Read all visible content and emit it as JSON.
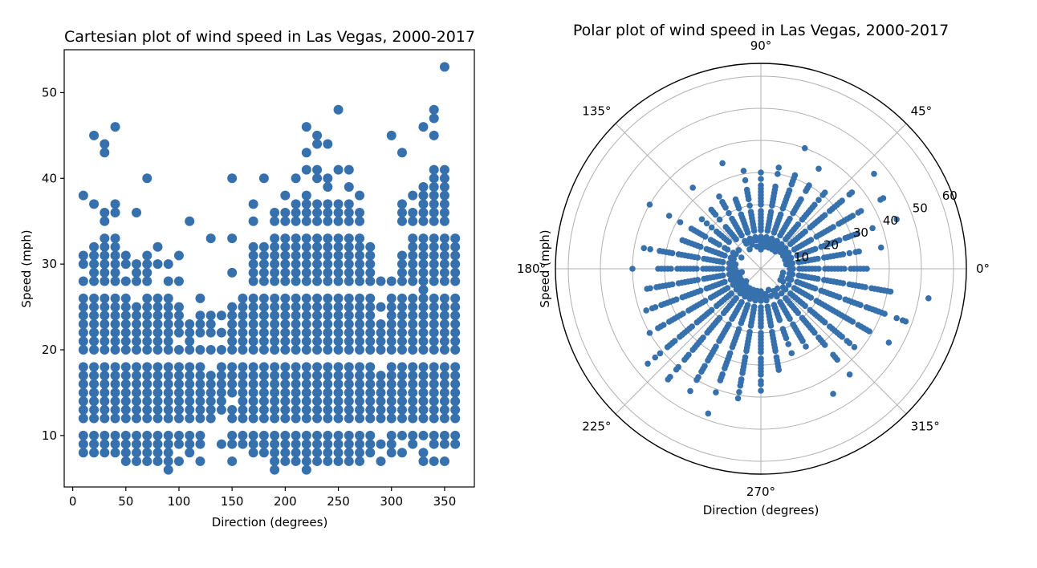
{
  "colors": {
    "point": "#3670ad",
    "grid": "#b0b0b0",
    "axis": "#000000",
    "background": "#ffffff"
  },
  "chart_data": [
    {
      "type": "scatter",
      "title": "Cartesian plot of wind speed in Las Vegas, 2000-2017",
      "xlabel": "Direction (degrees)",
      "ylabel": "Speed (mph)",
      "xlim": [
        -8,
        378
      ],
      "ylim": [
        4,
        55
      ],
      "xticks": [
        0,
        50,
        100,
        150,
        200,
        250,
        300,
        350
      ],
      "yticks": [
        10,
        20,
        30,
        40,
        50
      ],
      "grid": false,
      "directions": [
        10,
        20,
        30,
        40,
        50,
        60,
        70,
        80,
        90,
        100,
        110,
        120,
        130,
        140,
        150,
        160,
        170,
        180,
        190,
        200,
        210,
        220,
        230,
        240,
        250,
        260,
        270,
        280,
        290,
        300,
        310,
        320,
        330,
        340,
        350,
        360
      ],
      "series": [
        {
          "direction_speeds": {
            "10": [
              8,
              9,
              10,
              12,
              13,
              14,
              15,
              16,
              17,
              18,
              20,
              21,
              22,
              23,
              24,
              25,
              26,
              28,
              30,
              31,
              38
            ],
            "20": [
              8,
              9,
              10,
              12,
              13,
              14,
              15,
              16,
              17,
              18,
              20,
              21,
              22,
              23,
              24,
              25,
              26,
              28,
              29,
              30,
              31,
              32,
              37,
              45
            ],
            "30": [
              8,
              9,
              10,
              12,
              13,
              14,
              15,
              16,
              17,
              18,
              20,
              21,
              22,
              23,
              24,
              25,
              26,
              28,
              29,
              30,
              31,
              32,
              33,
              35,
              36,
              43,
              44
            ],
            "40": [
              8,
              9,
              10,
              12,
              13,
              14,
              15,
              16,
              17,
              18,
              20,
              21,
              22,
              23,
              24,
              25,
              26,
              28,
              29,
              30,
              31,
              32,
              33,
              36,
              37,
              46
            ],
            "50": [
              7,
              8,
              9,
              10,
              12,
              13,
              14,
              15,
              16,
              17,
              18,
              20,
              21,
              22,
              23,
              24,
              25,
              26,
              28,
              30,
              31
            ],
            "60": [
              7,
              8,
              9,
              10,
              12,
              13,
              14,
              15,
              16,
              17,
              18,
              20,
              21,
              22,
              23,
              24,
              25,
              28,
              29,
              30,
              36
            ],
            "70": [
              7,
              8,
              9,
              10,
              12,
              13,
              14,
              15,
              16,
              17,
              18,
              20,
              21,
              22,
              23,
              24,
              25,
              26,
              28,
              29,
              30,
              31,
              40
            ],
            "80": [
              7,
              8,
              9,
              10,
              12,
              13,
              14,
              15,
              16,
              17,
              18,
              20,
              21,
              22,
              23,
              24,
              25,
              26,
              30,
              32
            ],
            "90": [
              6,
              7,
              8,
              9,
              10,
              12,
              13,
              14,
              15,
              16,
              17,
              18,
              20,
              21,
              22,
              23,
              24,
              25,
              26,
              28,
              30
            ],
            "100": [
              7,
              9,
              10,
              12,
              13,
              14,
              15,
              16,
              17,
              18,
              20,
              22,
              23,
              24,
              25,
              28,
              31
            ],
            "110": [
              8,
              9,
              10,
              12,
              13,
              14,
              15,
              16,
              17,
              18,
              20,
              21,
              22,
              23,
              35
            ],
            "120": [
              7,
              9,
              10,
              12,
              13,
              14,
              15,
              16,
              17,
              18,
              20,
              22,
              23,
              24,
              26
            ],
            "130": [
              12,
              13,
              14,
              15,
              16,
              17,
              20,
              22,
              23,
              24,
              33
            ],
            "140": [
              9,
              13,
              14,
              15,
              16,
              17,
              18,
              20,
              22,
              24
            ],
            "150": [
              7,
              9,
              10,
              12,
              13,
              15,
              16,
              17,
              18,
              20,
              21,
              22,
              23,
              24,
              25,
              29,
              33,
              40
            ],
            "160": [
              9,
              10,
              12,
              13,
              14,
              15,
              16,
              17,
              18,
              20,
              21,
              22,
              23,
              24,
              25,
              26
            ],
            "170": [
              8,
              9,
              10,
              12,
              13,
              14,
              15,
              16,
              17,
              18,
              20,
              21,
              22,
              23,
              24,
              25,
              26,
              28,
              29,
              30,
              31,
              32,
              35,
              37
            ],
            "180": [
              8,
              9,
              10,
              12,
              13,
              14,
              15,
              16,
              17,
              18,
              20,
              21,
              22,
              23,
              24,
              25,
              26,
              28,
              29,
              30,
              31,
              32,
              40
            ],
            "190": [
              6,
              7,
              8,
              9,
              10,
              12,
              13,
              14,
              15,
              16,
              17,
              18,
              20,
              21,
              22,
              23,
              24,
              25,
              26,
              28,
              29,
              30,
              31,
              32,
              33,
              35,
              36
            ],
            "200": [
              7,
              8,
              9,
              10,
              12,
              13,
              14,
              15,
              16,
              17,
              18,
              20,
              21,
              22,
              23,
              24,
              25,
              26,
              28,
              29,
              30,
              31,
              32,
              33,
              35,
              36,
              38
            ],
            "210": [
              7,
              8,
              9,
              10,
              12,
              13,
              14,
              15,
              16,
              17,
              18,
              20,
              21,
              22,
              23,
              24,
              25,
              26,
              28,
              29,
              30,
              31,
              32,
              33,
              35,
              36,
              37,
              40
            ],
            "220": [
              6,
              7,
              8,
              9,
              10,
              12,
              13,
              14,
              15,
              16,
              17,
              18,
              20,
              21,
              22,
              23,
              24,
              25,
              26,
              28,
              29,
              30,
              31,
              32,
              33,
              35,
              36,
              37,
              38,
              41,
              43,
              46
            ],
            "230": [
              7,
              8,
              9,
              10,
              12,
              13,
              14,
              15,
              16,
              17,
              18,
              20,
              21,
              22,
              23,
              24,
              25,
              26,
              28,
              29,
              30,
              31,
              32,
              33,
              35,
              36,
              37,
              40,
              41,
              44,
              45
            ],
            "240": [
              7,
              8,
              9,
              10,
              12,
              13,
              14,
              15,
              16,
              17,
              18,
              20,
              21,
              22,
              23,
              24,
              25,
              26,
              28,
              29,
              30,
              31,
              32,
              33,
              35,
              36,
              37,
              39,
              40,
              44
            ],
            "250": [
              7,
              8,
              9,
              10,
              12,
              13,
              14,
              15,
              16,
              17,
              18,
              20,
              21,
              22,
              23,
              24,
              25,
              26,
              28,
              29,
              30,
              31,
              32,
              33,
              35,
              36,
              37,
              41,
              48
            ],
            "260": [
              7,
              8,
              9,
              10,
              12,
              13,
              14,
              15,
              16,
              17,
              18,
              20,
              21,
              22,
              23,
              24,
              25,
              26,
              28,
              29,
              30,
              31,
              32,
              33,
              35,
              36,
              37,
              39,
              41
            ],
            "270": [
              7,
              8,
              9,
              10,
              12,
              13,
              14,
              15,
              16,
              17,
              18,
              20,
              21,
              22,
              23,
              24,
              25,
              26,
              28,
              29,
              30,
              31,
              32,
              33,
              35,
              36,
              38
            ],
            "280": [
              8,
              9,
              10,
              12,
              13,
              14,
              15,
              16,
              17,
              18,
              20,
              21,
              22,
              23,
              24,
              25,
              26,
              28,
              29,
              30,
              31,
              32
            ],
            "290": [
              7,
              9,
              12,
              13,
              14,
              15,
              16,
              17,
              20,
              21,
              22,
              23,
              25,
              28
            ],
            "300": [
              8,
              9,
              10,
              12,
              13,
              14,
              15,
              16,
              17,
              18,
              20,
              21,
              22,
              23,
              24,
              25,
              26,
              28,
              45
            ],
            "310": [
              8,
              10,
              12,
              13,
              14,
              15,
              16,
              17,
              18,
              20,
              21,
              22,
              23,
              24,
              25,
              26,
              28,
              29,
              30,
              31,
              35,
              36,
              37,
              43
            ],
            "320": [
              9,
              10,
              12,
              13,
              14,
              15,
              16,
              17,
              18,
              20,
              21,
              22,
              23,
              24,
              25,
              26,
              28,
              29,
              30,
              31,
              32,
              33,
              35,
              36,
              38
            ],
            "330": [
              7,
              8,
              10,
              12,
              13,
              14,
              15,
              16,
              17,
              18,
              20,
              21,
              22,
              23,
              24,
              25,
              26,
              27,
              28,
              29,
              30,
              31,
              32,
              33,
              35,
              36,
              37,
              38,
              39,
              46
            ],
            "340": [
              7,
              9,
              10,
              12,
              13,
              14,
              15,
              16,
              17,
              18,
              20,
              21,
              22,
              23,
              24,
              25,
              26,
              28,
              29,
              30,
              31,
              32,
              33,
              35,
              36,
              37,
              38,
              39,
              40,
              41,
              45,
              47,
              48
            ],
            "350": [
              7,
              9,
              10,
              12,
              13,
              14,
              15,
              16,
              17,
              18,
              20,
              21,
              22,
              23,
              24,
              25,
              26,
              28,
              29,
              30,
              31,
              32,
              33,
              35,
              36,
              37,
              38,
              39,
              40,
              41,
              53
            ],
            "360": [
              9,
              10,
              12,
              13,
              14,
              15,
              16,
              17,
              18,
              20,
              21,
              22,
              23,
              24,
              25,
              26,
              28,
              29,
              30,
              31,
              32,
              33
            ]
          }
        }
      ]
    },
    {
      "type": "scatter",
      "projection": "polar",
      "title": "Polar plot of wind speed in Las Vegas, 2000-2017",
      "xlabel": "Direction (degrees)",
      "ylabel": "Speed (mph)",
      "rlim": [
        0,
        64
      ],
      "rticks": [
        10,
        20,
        30,
        40,
        50,
        60
      ],
      "theta_ticks": [
        "0°",
        "45°",
        "90°",
        "135°",
        "180°",
        "225°",
        "270°",
        "315°"
      ],
      "grid": true,
      "data_source": "same direction/speed pairs as the Cartesian plot"
    }
  ]
}
